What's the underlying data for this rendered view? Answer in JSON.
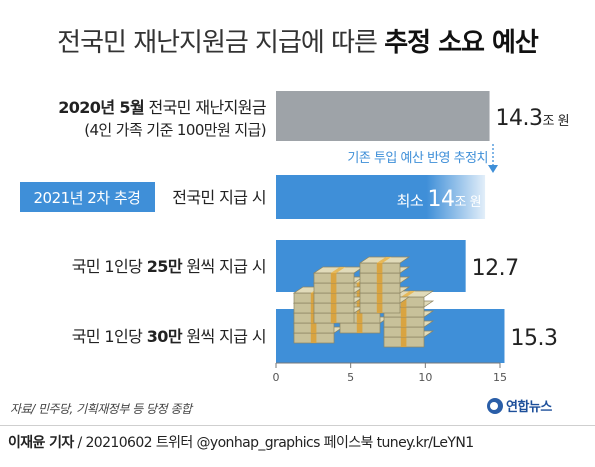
{
  "title": {
    "normal": "전국민 재난지원금 지급에 따른 ",
    "bold": "추정 소요 예산"
  },
  "annotation": "기존 투입 예산 반영 추정치",
  "source": "자료/ 민주당, 기획재정부 등 당정 종합",
  "logo": "연합뉴스",
  "footer": {
    "reporter": "이재윤 기자",
    "rest": " / 20210602   트위터 @yonhap_graphics  페이스북 tuney.kr/LeYN1"
  },
  "colors": {
    "gray_bar": "#9ea3a8",
    "blue_bar": "#3f8fd8",
    "badge": "#3f8fd8",
    "annotation": "#3f8fd8"
  },
  "icon": "stacked-cash-bundles-icon",
  "chart_data": {
    "type": "bar",
    "orientation": "horizontal",
    "categories": [
      "2020년 5월 전국민 재난지원금 (4인 가족 기준 100만원 지급)",
      "2021년 2차 추경 전국민 지급 시",
      "국민 1인당 25만 원씩 지급 시",
      "국민 1인당 30만 원씩 지급 시"
    ],
    "values": [
      14.3,
      14,
      12.7,
      15.3
    ],
    "value_labels": [
      {
        "num": "14.3",
        "unit": "조 원",
        "prefix": ""
      },
      {
        "num": "14",
        "unit": "조 원",
        "prefix": "최소 "
      },
      {
        "num": "12.7",
        "unit": "",
        "prefix": ""
      },
      {
        "num": "15.3",
        "unit": "",
        "prefix": ""
      }
    ],
    "row_labels": [
      {
        "line1": [
          {
            "t": "2020년 5월",
            "b": true
          },
          {
            "t": " 전국민 재난지원금",
            "b": false
          }
        ],
        "line2": "(4인 가족 기준 100만원 지급)"
      },
      {
        "badge": "2021년 2차 추경",
        "line1": [
          {
            "t": "전국민 지급 시",
            "b": false
          }
        ]
      },
      {
        "line1": [
          {
            "t": "국민 1인당 ",
            "b": false
          },
          {
            "t": "25만",
            "b": true
          },
          {
            "t": " 원씩 지급 시",
            "b": false
          }
        ]
      },
      {
        "line1": [
          {
            "t": "국민 1인당 ",
            "b": false
          },
          {
            "t": "30만",
            "b": true
          },
          {
            "t": " 원씩 지급 시",
            "b": false
          }
        ]
      }
    ],
    "xlim": [
      0,
      15
    ],
    "xticks": [
      0,
      5,
      10,
      15
    ],
    "xlabel": "",
    "ylabel": "",
    "grid": false,
    "legend": "none"
  }
}
